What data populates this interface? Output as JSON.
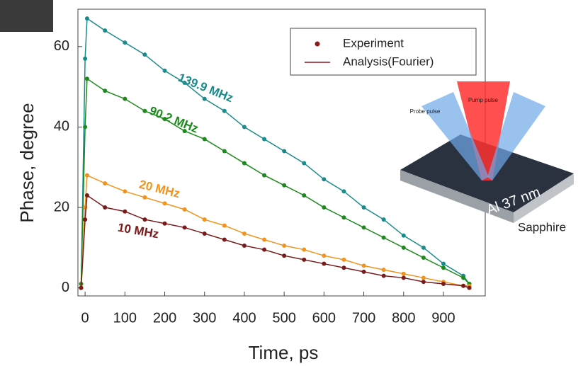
{
  "chart_data": {
    "type": "line",
    "x_label": "Time, ps",
    "y_label": "Phase, degree",
    "x": [
      -10,
      0,
      5,
      50,
      100,
      150,
      200,
      250,
      300,
      350,
      400,
      450,
      500,
      550,
      600,
      650,
      700,
      750,
      800,
      850,
      900,
      950,
      965
    ],
    "series": [
      {
        "name": "139.9 MHz",
        "color": "#1a8b8b",
        "values": [
          0,
          57,
          67,
          64,
          61,
          58,
          54,
          51,
          47,
          44,
          40,
          37,
          34,
          31,
          27,
          24,
          20,
          17,
          13,
          10,
          6,
          3,
          1
        ]
      },
      {
        "name": "90.2 MHz",
        "color": "#1e8a1e",
        "values": [
          1,
          40,
          52,
          49,
          47,
          44,
          42,
          39,
          37,
          34,
          31,
          28,
          25.5,
          23,
          20,
          17.5,
          15,
          12.5,
          10,
          7.5,
          5,
          2.5,
          1
        ]
      },
      {
        "name": "20 MHz",
        "color": "#f0941e",
        "values": [
          0,
          20,
          28,
          26,
          24,
          22.5,
          21,
          19.5,
          17,
          15.5,
          13.5,
          12,
          10.5,
          9.5,
          8,
          7,
          5.5,
          4.5,
          3.5,
          2.5,
          1.5,
          0.5,
          0.5
        ]
      },
      {
        "name": "10 MHz",
        "color": "#7a1a1a",
        "values": [
          0,
          17,
          23,
          20,
          19,
          17,
          16,
          15,
          13.5,
          12,
          10.5,
          9.5,
          8,
          7,
          6,
          5,
          4,
          3,
          2.5,
          1.5,
          1,
          0.5,
          0
        ]
      }
    ],
    "xlim": [
      -18,
      1005
    ],
    "ylim": [
      -2,
      69.3
    ],
    "xticks": [
      0,
      100,
      200,
      300,
      400,
      500,
      600,
      700,
      800,
      900
    ],
    "yticks": [
      0,
      20,
      40,
      60
    ],
    "legend": [
      {
        "label": "Experiment",
        "marker": "dot",
        "color": "#8b1a1a"
      },
      {
        "label": "Analysis(Fourier)",
        "marker": "line",
        "color": "#8b1a1a"
      }
    ],
    "inset": {
      "film": "Al 37 nm",
      "substrate": "Sapphire",
      "probe": "Probe pulse",
      "pump": "Pump pulse"
    }
  }
}
